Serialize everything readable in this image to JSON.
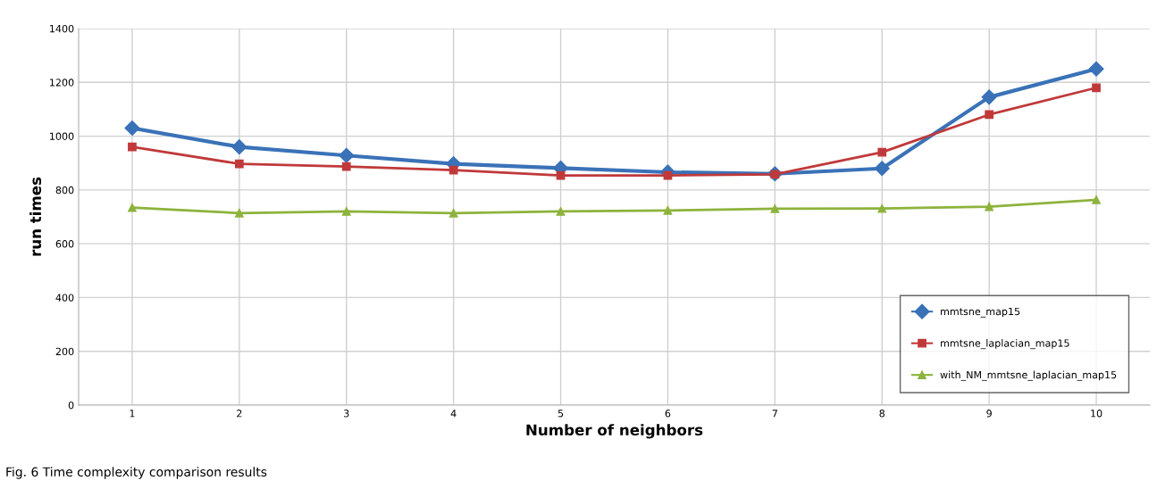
{
  "chart_data": {
    "type": "line",
    "xlabel": "Number of neighbors",
    "ylabel": "run times",
    "categories": [
      "1",
      "2",
      "3",
      "4",
      "5",
      "6",
      "7",
      "8",
      "9",
      "10"
    ],
    "series": [
      {
        "name": "mmtsne_map15",
        "color": "#3a72b8",
        "marker": "diamond",
        "values": [
          1030,
          960,
          928,
          897,
          881,
          866,
          860,
          880,
          1145,
          1250
        ]
      },
      {
        "name": "mmtsne_laplacian_map15",
        "color": "#c0393a",
        "marker": "square",
        "values": [
          960,
          897,
          887,
          874,
          854,
          854,
          858,
          940,
          1080,
          1180
        ]
      },
      {
        "name": "with_NM_mmtsne_laplacian_map15",
        "color": "#8db33c",
        "marker": "triangle",
        "values": [
          734,
          714,
          720,
          714,
          720,
          724,
          730,
          731,
          738,
          763
        ]
      }
    ],
    "ylim": [
      0,
      1400
    ],
    "yticks": [
      0,
      200,
      400,
      600,
      800,
      1000,
      1200,
      1400
    ],
    "grid": true,
    "legend": "bottom right",
    "line_style": "solid",
    "annotations": [
      "Fig. 6 Time complexity comparison results"
    ]
  }
}
